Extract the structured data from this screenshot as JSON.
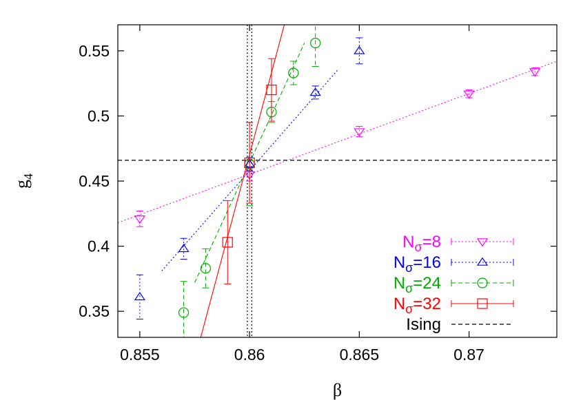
{
  "chart_data": {
    "type": "scatter",
    "title": "",
    "xlabel": "β",
    "ylabel": "g",
    "ylabel_subscript": "4",
    "xlim": [
      0.854,
      0.874
    ],
    "ylim": [
      0.33,
      0.57
    ],
    "x_ticks": [
      {
        "value": 0.855,
        "label": "0.855"
      },
      {
        "value": 0.86,
        "label": "0.86"
      },
      {
        "value": 0.865,
        "label": "0.865"
      },
      {
        "value": 0.87,
        "label": "0.87"
      }
    ],
    "y_ticks": [
      {
        "value": 0.35,
        "label": "0.35"
      },
      {
        "value": 0.4,
        "label": "0.4"
      },
      {
        "value": 0.45,
        "label": "0.45"
      },
      {
        "value": 0.5,
        "label": "0.5"
      },
      {
        "value": 0.55,
        "label": "0.55"
      }
    ],
    "grid": false,
    "legend_position": "bottom-right",
    "series": [
      {
        "name": "N",
        "subscript": "σ",
        "suffix": "=8",
        "color": "#ff00ff",
        "marker": "triangle-down",
        "line_style": "dotted",
        "points": [
          {
            "x": 0.855,
            "y": 0.421,
            "err": 0.006
          },
          {
            "x": 0.86,
            "y": 0.455,
            "err": 0.005
          },
          {
            "x": 0.865,
            "y": 0.488,
            "err": 0.004
          },
          {
            "x": 0.87,
            "y": 0.517,
            "err": 0.003
          },
          {
            "x": 0.873,
            "y": 0.534,
            "err": 0.003
          }
        ],
        "fit": {
          "x": [
            0.854,
            0.874
          ],
          "y": [
            0.418,
            0.542
          ]
        }
      },
      {
        "name": "N",
        "subscript": "σ",
        "suffix": "=16",
        "color": "#0000ff",
        "marker": "triangle-up",
        "line_style": "dotted",
        "points": [
          {
            "x": 0.855,
            "y": 0.361,
            "err": 0.017
          },
          {
            "x": 0.857,
            "y": 0.398,
            "err": 0.008
          },
          {
            "x": 0.86,
            "y": 0.463,
            "err": 0.005
          },
          {
            "x": 0.863,
            "y": 0.518,
            "err": 0.005
          },
          {
            "x": 0.865,
            "y": 0.55,
            "err": 0.01
          }
        ],
        "fit": {
          "x": [
            0.856,
            0.864
          ],
          "y": [
            0.381,
            0.535
          ]
        }
      },
      {
        "name": "N",
        "subscript": "σ",
        "suffix": "=24",
        "color": "#00aa00",
        "marker": "circle",
        "line_style": "dashed",
        "points": [
          {
            "x": 0.857,
            "y": 0.349,
            "err": 0.024
          },
          {
            "x": 0.858,
            "y": 0.383,
            "err": 0.015
          },
          {
            "x": 0.86,
            "y": 0.463,
            "err": 0.032
          },
          {
            "x": 0.861,
            "y": 0.503,
            "err": 0.008
          },
          {
            "x": 0.862,
            "y": 0.533,
            "err": 0.009
          },
          {
            "x": 0.863,
            "y": 0.556,
            "err": 0.018
          }
        ],
        "fit": {
          "x": [
            0.8575,
            0.8625
          ],
          "y": [
            0.372,
            0.556
          ]
        }
      },
      {
        "name": "N",
        "subscript": "σ",
        "suffix": "=32",
        "color": "#ff0000",
        "marker": "square",
        "line_style": "solid",
        "points": [
          {
            "x": 0.859,
            "y": 0.403,
            "err": 0.032
          },
          {
            "x": 0.86,
            "y": 0.464,
            "err": 0.031
          },
          {
            "x": 0.861,
            "y": 0.52,
            "err": 0.024
          }
        ],
        "fit": {
          "x": [
            0.8573,
            0.8619
          ],
          "y": [
            0.3,
            0.59
          ]
        }
      }
    ],
    "reference_lines": [
      {
        "name": "Ising",
        "color": "#000000",
        "line_style": "dashed",
        "orientation": "horizontal",
        "y": 0.466
      },
      {
        "color": "#000000",
        "line_style": "dotted",
        "orientation": "vertical",
        "x": 0.8599
      },
      {
        "color": "#000000",
        "line_style": "dotted",
        "orientation": "vertical",
        "x": 0.8601
      }
    ]
  }
}
